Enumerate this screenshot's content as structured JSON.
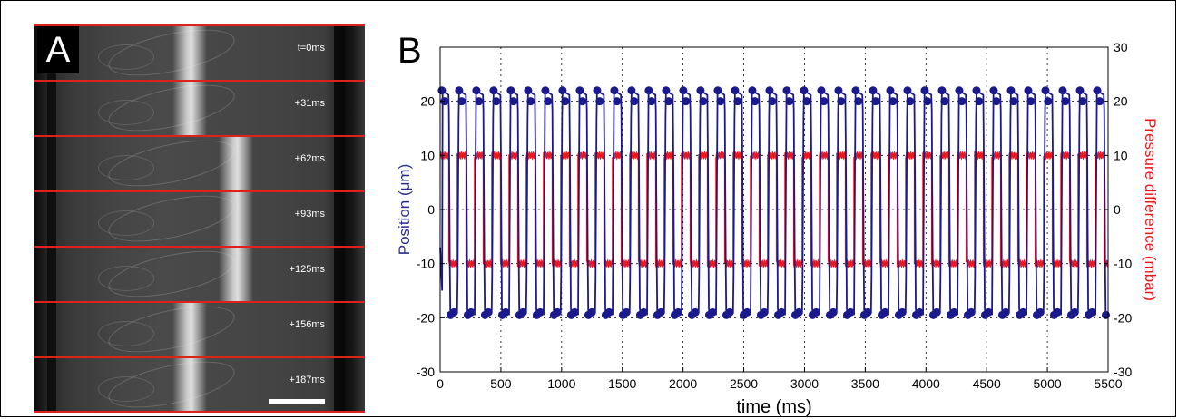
{
  "panel_a": {
    "letter": "A",
    "frames": [
      {
        "label": "t=0ms",
        "band": 0.47
      },
      {
        "label": "+31ms",
        "band": 0.47
      },
      {
        "label": "+62ms",
        "band": 0.61
      },
      {
        "label": "+93ms",
        "band": 0.61
      },
      {
        "label": "+125ms",
        "band": 0.61
      },
      {
        "label": "+156ms",
        "band": 0.47
      },
      {
        "label": "+187ms",
        "band": 0.47
      }
    ],
    "scale_bar": true,
    "divider_color": "#e0201c"
  },
  "panel_b": {
    "letter": "B"
  },
  "chart_data": {
    "type": "line",
    "xlabel": "time (ms)",
    "ylabel_left": "Position (μm)",
    "ylabel_right": "Pressure difference (mbar)",
    "xlim": [
      0,
      5500
    ],
    "ylim_left": [
      -30,
      30
    ],
    "ylim_right": [
      -30,
      30
    ],
    "xticks": [
      0,
      500,
      1000,
      1500,
      2000,
      2500,
      3000,
      3500,
      4000,
      4500,
      5000,
      5500
    ],
    "yticks_left": [
      -30,
      -20,
      -10,
      0,
      10,
      20
    ],
    "yticks_right": [
      -30,
      -20,
      -10,
      0,
      10,
      20,
      30
    ],
    "grid": true,
    "series": [
      {
        "axis": "left",
        "color": "#1a1a8c",
        "marker": "circle",
        "oscillation": {
          "period_ms": 142,
          "amplitude_max": 22,
          "amplitude_min": -19.5,
          "start_value": -7
        }
      },
      {
        "axis": "right",
        "color": "#e8191e",
        "marker": "none",
        "square_wave": {
          "period_ms": 142,
          "high": 10,
          "low": -10
        }
      }
    ]
  }
}
